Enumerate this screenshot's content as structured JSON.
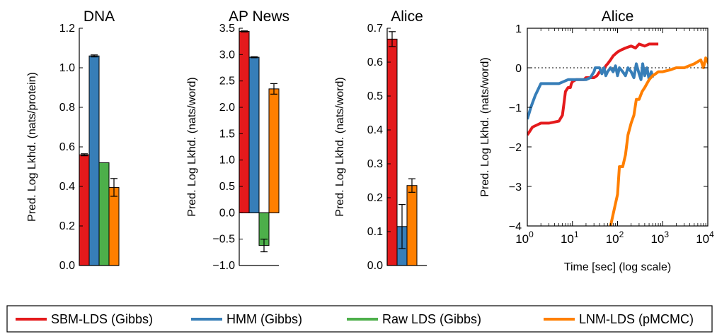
{
  "chart_data": [
    {
      "type": "bar",
      "title": "DNA",
      "ylabel": "Pred. Log Lkhd. (nats/protein)",
      "xlabel": "",
      "ylim": [
        0.0,
        1.2
      ],
      "yticks": [
        0.0,
        0.2,
        0.4,
        0.6,
        0.8,
        1.0,
        1.2
      ],
      "ytick_labels": [
        "0.0",
        "0.2",
        "0.4",
        "0.6",
        "0.8",
        "1.0",
        "1.2"
      ],
      "series": [
        {
          "name": "SBM-LDS (Gibbs)",
          "value": 0.56,
          "error": 0.005
        },
        {
          "name": "HMM (Gibbs)",
          "value": 1.06,
          "error": 0.005
        },
        {
          "name": "Raw LDS (Gibbs)",
          "value": 0.52,
          "error": 0.0
        },
        {
          "name": "LNM-LDS (pMCMC)",
          "value": 0.395,
          "error": 0.045
        }
      ]
    },
    {
      "type": "bar",
      "title": "AP News",
      "ylabel": "Pred. Log Lkhd. (nats/word)",
      "xlabel": "",
      "ylim": [
        -1.0,
        3.5
      ],
      "yticks": [
        -1.0,
        -0.5,
        0.0,
        0.5,
        1.0,
        1.5,
        2.0,
        2.5,
        3.0,
        3.5
      ],
      "ytick_labels": [
        "−1.0",
        "−0.5",
        "0.0",
        "0.5",
        "1.0",
        "1.5",
        "2.0",
        "2.5",
        "3.0",
        "3.5"
      ],
      "series": [
        {
          "name": "SBM-LDS (Gibbs)",
          "value": 3.44,
          "error": 0.01
        },
        {
          "name": "HMM (Gibbs)",
          "value": 2.95,
          "error": 0.01
        },
        {
          "name": "Raw LDS (Gibbs)",
          "value": -0.62,
          "error": 0.12
        },
        {
          "name": "LNM-LDS (pMCMC)",
          "value": 2.35,
          "error": 0.1
        }
      ]
    },
    {
      "type": "bar",
      "title": "Alice",
      "ylabel": "Pred. Log Lkhd. (nats/word)",
      "xlabel": "",
      "ylim": [
        0.0,
        0.7
      ],
      "yticks": [
        0.0,
        0.1,
        0.2,
        0.3,
        0.4,
        0.5,
        0.6,
        0.7
      ],
      "ytick_labels": [
        "0.0",
        "0.1",
        "0.2",
        "0.3",
        "0.4",
        "0.5",
        "0.6",
        "0.7"
      ],
      "series": [
        {
          "name": "SBM-LDS (Gibbs)",
          "value": 0.668,
          "error": 0.022
        },
        {
          "name": "HMM (Gibbs)",
          "value": 0.115,
          "error": 0.065
        },
        {
          "name": "LNM-LDS (pMCMC)",
          "value": 0.236,
          "error": 0.02
        }
      ]
    },
    {
      "type": "line",
      "title": "Alice",
      "ylabel": "Pred. Log Lkhd. (nats/word)",
      "xlabel": "Time [sec] (log scale)",
      "xscale": "log",
      "xlim": [
        1,
        10000
      ],
      "ylim": [
        -4,
        1
      ],
      "yticks": [
        -4,
        -3,
        -2,
        -1,
        0,
        1
      ],
      "ytick_labels": [
        "−4",
        "−3",
        "−2",
        "−1",
        "0",
        "1"
      ],
      "xticks": [
        1,
        10,
        100,
        1000,
        10000
      ],
      "xtick_base": "10",
      "xtick_exponents": [
        "0",
        "1",
        "2",
        "3",
        "4"
      ],
      "reference_line": {
        "y": 0,
        "style": "dotted"
      },
      "series": [
        {
          "name": "SBM-LDS (Gibbs)",
          "x": [
            1,
            1.3,
            2,
            3,
            5,
            6,
            6.5,
            7,
            8,
            9,
            9.5,
            10,
            12,
            15,
            18,
            20,
            25,
            30,
            35,
            40,
            45,
            50,
            55,
            60,
            70,
            80,
            100,
            120,
            150,
            200,
            250,
            300,
            400,
            500,
            600,
            700,
            800
          ],
          "y": [
            -1.7,
            -1.5,
            -1.4,
            -1.4,
            -1.35,
            -1.2,
            -0.9,
            -0.6,
            -0.5,
            -0.5,
            -0.4,
            -0.35,
            -0.3,
            -0.3,
            -0.3,
            -0.25,
            -0.25,
            -0.25,
            -0.2,
            -0.1,
            -0.1,
            -0.05,
            0.05,
            0.1,
            0.2,
            0.3,
            0.4,
            0.45,
            0.5,
            0.55,
            0.5,
            0.6,
            0.55,
            0.6,
            0.6,
            0.6,
            0.6
          ]
        },
        {
          "name": "HMM (Gibbs)",
          "x": [
            1,
            1.2,
            1.5,
            2,
            3,
            5,
            8,
            10,
            15,
            20,
            25,
            30,
            32,
            35,
            40,
            45,
            50,
            55,
            60,
            70,
            80,
            90,
            100,
            110,
            130,
            150,
            170,
            200,
            230,
            260,
            300,
            330,
            360,
            400,
            450,
            500,
            560,
            600
          ],
          "y": [
            -1.3,
            -1.0,
            -0.7,
            -0.4,
            -0.4,
            -0.4,
            -0.3,
            -0.3,
            -0.3,
            -0.3,
            -0.25,
            -0.1,
            0.0,
            0.0,
            0.0,
            -0.15,
            0.0,
            -0.2,
            -0.1,
            0.0,
            -0.1,
            0.05,
            -0.2,
            0.0,
            -0.1,
            -0.2,
            0.0,
            -0.1,
            -0.25,
            0.1,
            -0.15,
            -0.3,
            0.1,
            -0.2,
            0.0,
            -0.3,
            -0.1,
            -0.25
          ]
        },
        {
          "name": "LNM-LDS (pMCMC)",
          "x": [
            70,
            80,
            100,
            110,
            130,
            150,
            170,
            200,
            230,
            260,
            300,
            350,
            400,
            500,
            600,
            700,
            800,
            1000,
            1500,
            2000,
            3000,
            5000,
            7000,
            8000,
            9000,
            10000,
            11000,
            12000,
            13000
          ],
          "y": [
            -4.0,
            -3.7,
            -3.2,
            -2.5,
            -2.5,
            -2.2,
            -1.7,
            -1.4,
            -1.2,
            -0.8,
            -0.8,
            -0.6,
            -0.5,
            -0.3,
            -0.2,
            -0.15,
            -0.1,
            -0.1,
            -0.05,
            0.0,
            0.0,
            0.1,
            0.2,
            0.0,
            0.25,
            0.15,
            0.05,
            0.2,
            0.0
          ]
        }
      ]
    }
  ],
  "legend": {
    "placement": "bottom",
    "items": [
      {
        "label": "SBM-LDS (Gibbs)",
        "color": "#e41a1c"
      },
      {
        "label": "HMM (Gibbs)",
        "color": "#377eb8"
      },
      {
        "label": "Raw LDS (Gibbs)",
        "color": "#4daf4a"
      },
      {
        "label": "LNM-LDS (pMCMC)",
        "color": "#ff7f00"
      }
    ]
  },
  "colors": {
    "SBM-LDS (Gibbs)": "#e41a1c",
    "HMM (Gibbs)": "#377eb8",
    "Raw LDS (Gibbs)": "#4daf4a",
    "LNM-LDS (pMCMC)": "#ff7f00"
  }
}
